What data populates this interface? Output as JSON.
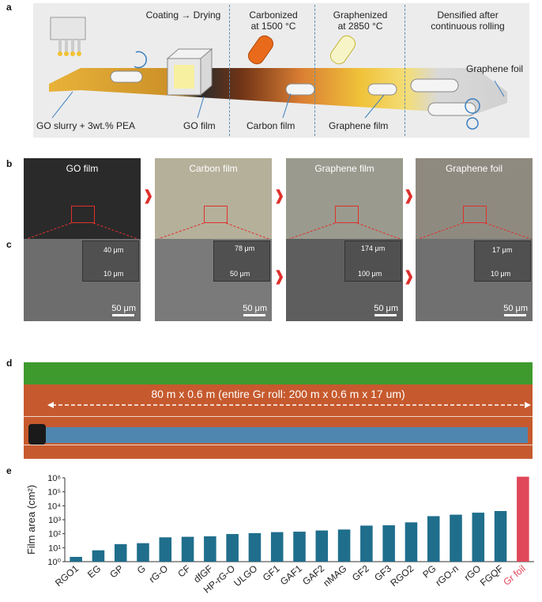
{
  "panel_labels": {
    "a": "a",
    "b": "b",
    "c": "c",
    "d": "d",
    "e": "e"
  },
  "panel_a": {
    "step_coating": "Coating → Drying",
    "step_carbonized_1": "Carbonized",
    "step_carbonized_2": "at 1500 °C",
    "step_graphenized_1": "Graphenized",
    "step_graphenized_2": "at 2850 °C",
    "step_densified_1": "Densified after",
    "step_densified_2": "continuous rolling",
    "label_slurry": "GO slurry + 3wt.% PEA",
    "label_go_film": "GO film",
    "label_carbon_film": "Carbon film",
    "label_graphene_film": "Graphene film",
    "label_graphene_foil": "Graphene foil"
  },
  "panel_b": {
    "photos": [
      {
        "label": "GO film",
        "color": "#2a2a2a"
      },
      {
        "label": "Carbon film",
        "color": "#b5b09a"
      },
      {
        "label": "Graphene film",
        "color": "#9a9a8e"
      },
      {
        "label": "Graphene foil",
        "color": "#8f8a80"
      }
    ]
  },
  "panel_c": {
    "sem": [
      {
        "top": "40 μm",
        "bottom": "10 μm",
        "scale": "50 μm"
      },
      {
        "top": "78 μm",
        "bottom": "50 μm",
        "scale": "50 μm"
      },
      {
        "top": "174 μm",
        "bottom": "100 μm",
        "scale": "50 μm"
      },
      {
        "top": "17 μm",
        "bottom": "10 μm",
        "scale": "50 μm"
      }
    ]
  },
  "panel_d": {
    "caption": "80 m x 0.6 m (entire Gr roll: 200 m x 0.6 m x 17 um)"
  },
  "chart_data": {
    "type": "bar",
    "ylabel": "Film area (cm²)",
    "yscale": "log",
    "ylim": [
      1,
      1000000
    ],
    "ytick_labels": [
      "10⁰",
      "10¹",
      "10²",
      "10³",
      "10⁴",
      "10⁵",
      "10⁶"
    ],
    "categories": [
      "RGO1",
      "EG",
      "GP",
      "G",
      "rG-O",
      "CF",
      "dfGF",
      "HP-rG-O",
      "ULGO",
      "GF1",
      "GAF1",
      "GAF2",
      "nMAG",
      "GF2",
      "GF3",
      "RGO2",
      "PG",
      "rGO-n",
      "rGO",
      "FGQF",
      "Gr foil"
    ],
    "values": [
      2.2,
      6.5,
      18,
      21,
      55,
      60,
      65,
      95,
      110,
      130,
      140,
      170,
      200,
      380,
      400,
      650,
      1800,
      2300,
      3200,
      4200,
      1200000
    ],
    "colors": {
      "default": "#1f6e8c",
      "highlight": "#e0485a"
    },
    "highlight_category": "Gr foil"
  }
}
